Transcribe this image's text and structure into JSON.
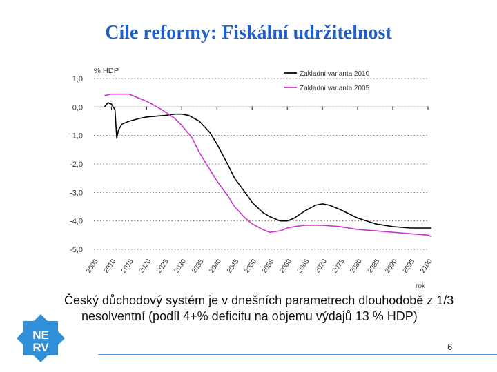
{
  "slide": {
    "title": "Cíle reformy: Fiskální udržitelnost",
    "body_text": "Český důchodový systém je v dnešních parametrech dlouhodobě z 1/3 nesolventní (podíl 4+% deficitu na objemu výdajů 13 % HDP)",
    "page_number": "6",
    "logo": {
      "line1": "NE",
      "line2": "RV",
      "color": "#2f8fd8"
    }
  },
  "chart_data": {
    "type": "line",
    "ylabel": "% HDP",
    "xlabel": "rok",
    "ylim": [
      -5.0,
      1.0
    ],
    "xlim": [
      2005,
      2100
    ],
    "y_ticks": [
      "1,0",
      "0,0",
      "-1,0",
      "-2,0",
      "-3,0",
      "-4,0",
      "-5,0"
    ],
    "y_tick_values": [
      1,
      0,
      -1,
      -2,
      -3,
      -4,
      -5
    ],
    "x_ticks": [
      "2005",
      "2010",
      "2015",
      "2020",
      "2025",
      "2030",
      "2035",
      "2040",
      "2045",
      "2050",
      "2055",
      "2060",
      "2065",
      "2070",
      "2075",
      "2080",
      "2085",
      "2090",
      "2095",
      "2100"
    ],
    "grid": true,
    "legend_position": "top-right",
    "series": [
      {
        "name": "Zakladni varianta 2010",
        "color": "#000000",
        "x": [
          2008,
          2009,
          2010,
          2011,
          2011.5,
          2012,
          2013,
          2015,
          2018,
          2020,
          2025,
          2028,
          2030,
          2032,
          2035,
          2038,
          2040,
          2043,
          2045,
          2048,
          2050,
          2053,
          2055,
          2058,
          2060,
          2062,
          2065,
          2068,
          2070,
          2072,
          2075,
          2080,
          2085,
          2090,
          2095,
          2100,
          2101
        ],
        "y": [
          0.0,
          0.15,
          0.1,
          -0.1,
          -1.1,
          -0.8,
          -0.6,
          -0.5,
          -0.4,
          -0.35,
          -0.3,
          -0.25,
          -0.25,
          -0.3,
          -0.5,
          -0.9,
          -1.3,
          -2.0,
          -2.5,
          -3.0,
          -3.35,
          -3.7,
          -3.85,
          -4.0,
          -4.0,
          -3.9,
          -3.65,
          -3.45,
          -3.4,
          -3.45,
          -3.6,
          -3.9,
          -4.1,
          -4.2,
          -4.25,
          -4.25,
          -4.25
        ]
      },
      {
        "name": "Zakladni varianta 2005",
        "color": "#cc33cc",
        "x": [
          2008,
          2010,
          2015,
          2018,
          2020,
          2023,
          2025,
          2028,
          2030,
          2033,
          2035,
          2038,
          2040,
          2043,
          2045,
          2048,
          2050,
          2053,
          2055,
          2058,
          2060,
          2062,
          2065,
          2070,
          2075,
          2080,
          2085,
          2090,
          2095,
          2100,
          2101
        ],
        "y": [
          0.4,
          0.45,
          0.45,
          0.3,
          0.2,
          0.0,
          -0.15,
          -0.4,
          -0.65,
          -1.1,
          -1.6,
          -2.2,
          -2.6,
          -3.1,
          -3.5,
          -3.9,
          -4.1,
          -4.3,
          -4.4,
          -4.35,
          -4.25,
          -4.2,
          -4.15,
          -4.15,
          -4.2,
          -4.3,
          -4.35,
          -4.4,
          -4.45,
          -4.5,
          -4.55
        ]
      }
    ]
  }
}
